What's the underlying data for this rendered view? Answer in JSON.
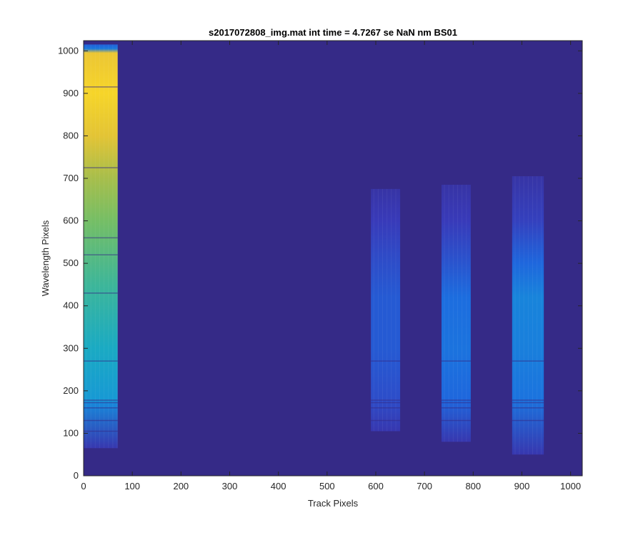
{
  "chart_data": {
    "type": "heatmap",
    "title": "s2017072808_img.mat int time = 4.7267 se  NaN nm BS01",
    "xlabel": "Track Pixels",
    "ylabel": "Wavelength Pixels",
    "xlim": [
      0,
      1024
    ],
    "ylim": [
      0,
      1024
    ],
    "xticks": [
      0,
      100,
      200,
      300,
      400,
      500,
      600,
      700,
      800,
      900,
      1000
    ],
    "yticks": [
      0,
      100,
      200,
      300,
      400,
      500,
      600,
      700,
      800,
      900,
      1000
    ],
    "grid": false,
    "colormap": "parula",
    "colors": {
      "background": "#352a87",
      "low": "#3a3dbb",
      "mid": "#1c6ae0",
      "midhigh": "#1ba8c8",
      "high": "#c7c03a",
      "max": "#f9d52a"
    },
    "bands": [
      {
        "name": "track-band-1",
        "x_range": [
          0,
          70
        ],
        "y_range": [
          65,
          1015
        ],
        "profile": [
          {
            "y": 65,
            "level": 0.08
          },
          {
            "y": 170,
            "level": 0.35
          },
          {
            "y": 180,
            "level": 0.42
          },
          {
            "y": 300,
            "level": 0.52
          },
          {
            "y": 450,
            "level": 0.62
          },
          {
            "y": 600,
            "level": 0.72
          },
          {
            "y": 700,
            "level": 0.78
          },
          {
            "y": 800,
            "level": 0.88
          },
          {
            "y": 900,
            "level": 0.94
          },
          {
            "y": 995,
            "level": 0.9
          },
          {
            "y": 1005,
            "level": 0.3
          },
          {
            "y": 1015,
            "level": 0.22
          }
        ],
        "dark_lines": [
          105,
          130,
          160,
          172,
          178,
          270,
          430,
          520,
          560,
          725,
          915
        ]
      },
      {
        "name": "track-band-2",
        "x_range": [
          590,
          650
        ],
        "y_range": [
          105,
          675
        ],
        "profile": [
          {
            "y": 105,
            "level": 0.08
          },
          {
            "y": 180,
            "level": 0.16
          },
          {
            "y": 300,
            "level": 0.2
          },
          {
            "y": 420,
            "level": 0.2
          },
          {
            "y": 520,
            "level": 0.15
          },
          {
            "y": 600,
            "level": 0.1
          },
          {
            "y": 675,
            "level": 0.06
          }
        ],
        "dark_lines": [
          130,
          160,
          172,
          178,
          270
        ]
      },
      {
        "name": "track-band-3",
        "x_range": [
          735,
          795
        ],
        "y_range": [
          80,
          685
        ],
        "profile": [
          {
            "y": 80,
            "level": 0.08
          },
          {
            "y": 180,
            "level": 0.24
          },
          {
            "y": 300,
            "level": 0.28
          },
          {
            "y": 420,
            "level": 0.26
          },
          {
            "y": 500,
            "level": 0.18
          },
          {
            "y": 600,
            "level": 0.1
          },
          {
            "y": 685,
            "level": 0.06
          }
        ],
        "dark_lines": [
          130,
          160,
          172,
          178,
          270
        ]
      },
      {
        "name": "track-band-4",
        "x_range": [
          880,
          945
        ],
        "y_range": [
          50,
          705
        ],
        "profile": [
          {
            "y": 50,
            "level": 0.08
          },
          {
            "y": 180,
            "level": 0.28
          },
          {
            "y": 300,
            "level": 0.32
          },
          {
            "y": 420,
            "level": 0.34
          },
          {
            "y": 500,
            "level": 0.24
          },
          {
            "y": 600,
            "level": 0.12
          },
          {
            "y": 705,
            "level": 0.06
          }
        ],
        "dark_lines": [
          130,
          160,
          172,
          178,
          270
        ]
      }
    ]
  }
}
